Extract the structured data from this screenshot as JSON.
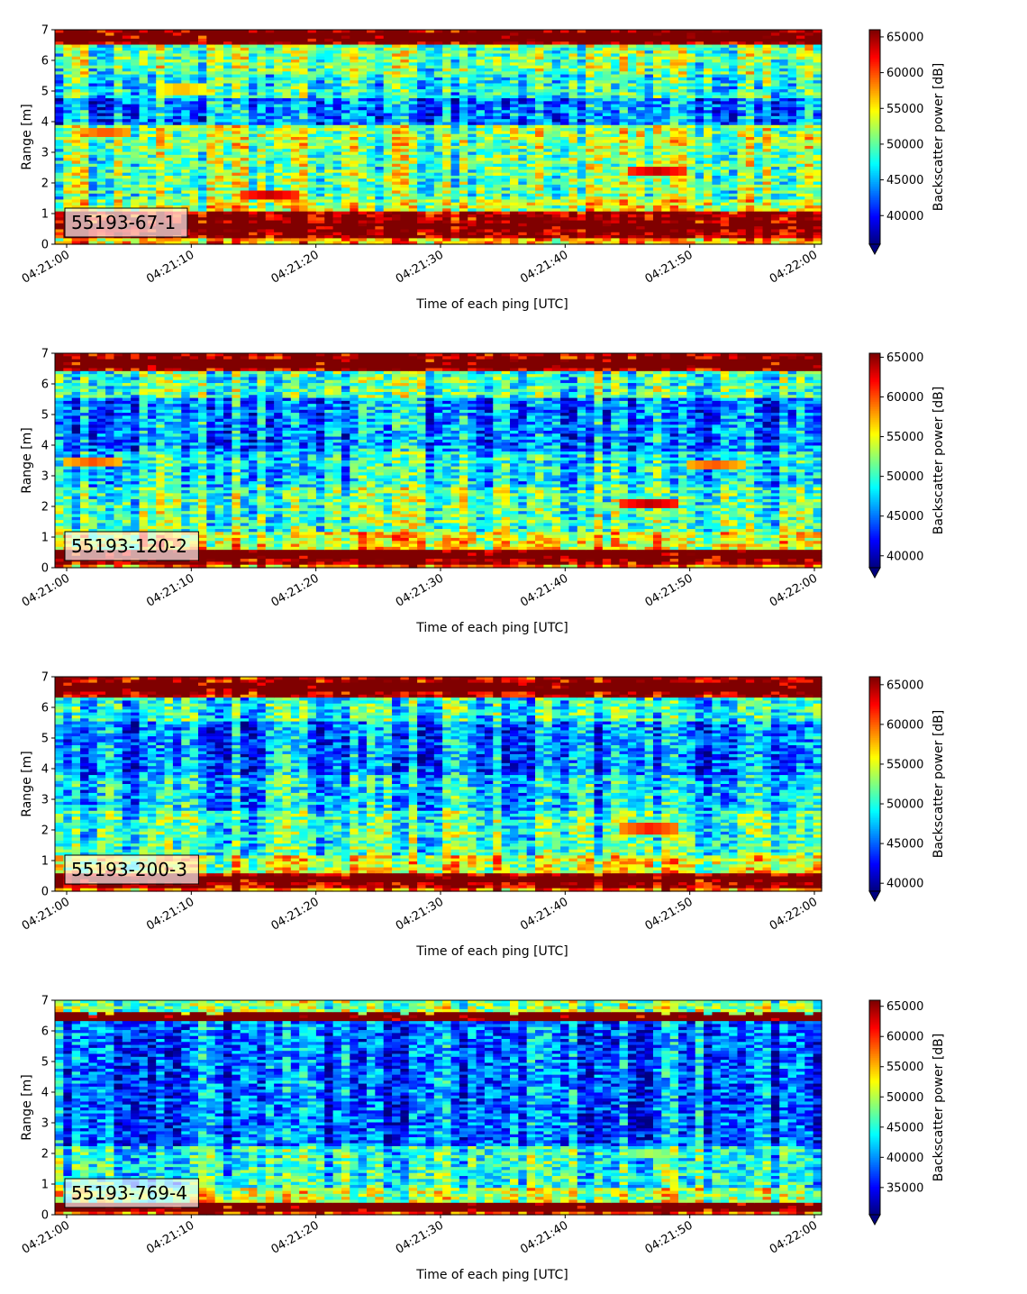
{
  "chart_data": [
    {
      "type": "heatmap",
      "label": "55193-67-1",
      "xlabel": "Time of each ping [UTC]",
      "ylabel": "Range [m]",
      "xticks": [
        "04:21:00",
        "04:21:10",
        "04:21:20",
        "04:21:30",
        "04:21:40",
        "04:21:50",
        "04:22:00"
      ],
      "yticks": [
        "0",
        "1",
        "2",
        "3",
        "4",
        "5",
        "6",
        "7"
      ],
      "ylim": [
        0,
        7
      ],
      "xlim_seconds": [
        0,
        60
      ],
      "colorbar_label": "Backscatter power [dB]",
      "colorbar_ticks": [
        "40000",
        "45000",
        "50000",
        "55000",
        "60000",
        "65000"
      ],
      "clim": [
        36000,
        66000
      ],
      "colormap": "jet",
      "features": [
        {
          "y": 0.6,
          "value": 66000,
          "note": "bottom saturated band (0.2–1.1 m)"
        },
        {
          "y": 6.75,
          "value": 66000,
          "note": "top saturated band (6.5–7 m)"
        },
        {
          "t": 17,
          "y": 1.6,
          "value": 64000
        },
        {
          "t": 47.5,
          "y": 2.35,
          "value": 64000
        },
        {
          "t": 4,
          "y": 3.65,
          "value": 60000
        },
        {
          "t": 10,
          "y": 5.05,
          "value": 57000
        }
      ]
    },
    {
      "type": "heatmap",
      "label": "55193-120-2",
      "xlabel": "Time of each ping [UTC]",
      "ylabel": "Range [m]",
      "xticks": [
        "04:21:00",
        "04:21:10",
        "04:21:20",
        "04:21:30",
        "04:21:40",
        "04:21:50",
        "04:22:00"
      ],
      "yticks": [
        "0",
        "1",
        "2",
        "3",
        "4",
        "5",
        "6",
        "7"
      ],
      "ylim": [
        0,
        7
      ],
      "xlim_seconds": [
        0,
        60
      ],
      "colorbar_label": "Backscatter power [dB]",
      "colorbar_ticks": [
        "40000",
        "45000",
        "50000",
        "55000",
        "60000",
        "65000"
      ],
      "clim": [
        38500,
        65500
      ],
      "colormap": "jet",
      "features": [
        {
          "y": 0.45,
          "value": 65500,
          "note": "bottom saturated band"
        },
        {
          "y": 6.65,
          "value": 65500,
          "note": "top saturated band"
        },
        {
          "t": 47,
          "y": 2.08,
          "value": 64000
        },
        {
          "t": 3,
          "y": 3.45,
          "value": 60000
        },
        {
          "t": 52,
          "y": 3.35,
          "value": 60000
        }
      ]
    },
    {
      "type": "heatmap",
      "label": "55193-200-3",
      "xlabel": "Time of each ping [UTC]",
      "ylabel": "Range [m]",
      "xticks": [
        "04:21:00",
        "04:21:10",
        "04:21:20",
        "04:21:30",
        "04:21:40",
        "04:21:50",
        "04:22:00"
      ],
      "yticks": [
        "0",
        "1",
        "2",
        "3",
        "4",
        "5",
        "6",
        "7"
      ],
      "ylim": [
        0,
        7
      ],
      "xlim_seconds": [
        0,
        60
      ],
      "colorbar_label": "Backscatter power [dB]",
      "colorbar_ticks": [
        "40000",
        "45000",
        "50000",
        "55000",
        "60000",
        "65000"
      ],
      "clim": [
        39000,
        66000
      ],
      "colormap": "jet",
      "features": [
        {
          "y": 0.4,
          "value": 66000,
          "note": "bottom saturated band"
        },
        {
          "y": 6.65,
          "value": 66000,
          "note": "top saturated band"
        },
        {
          "t": 47,
          "y": 2.05,
          "value": 62000
        }
      ]
    },
    {
      "type": "heatmap",
      "label": "55193-769-4",
      "xlabel": "Time of each ping [UTC]",
      "ylabel": "Range [m]",
      "xticks": [
        "04:21:00",
        "04:21:10",
        "04:21:20",
        "04:21:30",
        "04:21:40",
        "04:21:50",
        "04:22:00"
      ],
      "yticks": [
        "0",
        "1",
        "2",
        "3",
        "4",
        "5",
        "6",
        "7"
      ],
      "ylim": [
        0,
        7
      ],
      "xlim_seconds": [
        0,
        60
      ],
      "colorbar_label": "Backscatter power [dB]",
      "colorbar_ticks": [
        "35000",
        "40000",
        "45000",
        "50000",
        "55000",
        "60000",
        "65000"
      ],
      "clim": [
        30500,
        66000
      ],
      "colormap": "jet",
      "features": [
        {
          "y": 0.25,
          "value": 66000,
          "note": "bottom saturated band"
        },
        {
          "y": 6.45,
          "value": 66000,
          "note": "top saturated band"
        },
        {
          "t": 47,
          "y": 2.0,
          "value": 50000
        }
      ]
    }
  ]
}
